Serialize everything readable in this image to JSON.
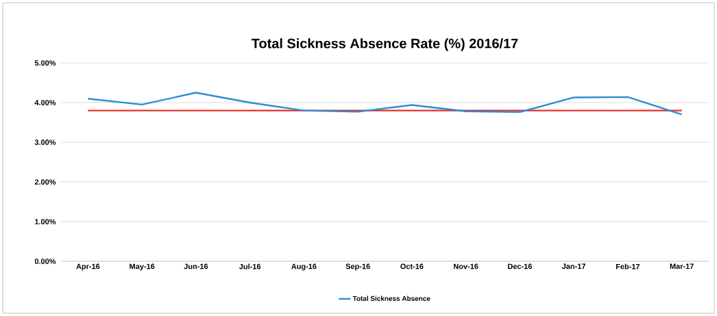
{
  "chart_data": {
    "type": "line",
    "title": "Total Sickness Absence Rate (%) 2016/17",
    "categories": [
      "Apr-16",
      "May-16",
      "Jun-16",
      "Jul-16",
      "Aug-16",
      "Sep-16",
      "Oct-16",
      "Nov-16",
      "Dec-16",
      "Jan-17",
      "Feb-17",
      "Mar-17"
    ],
    "series": [
      {
        "name": "Total Sickness Absence",
        "color": "#2e8bd0",
        "values": [
          4.1,
          3.95,
          4.25,
          4.0,
          3.8,
          3.77,
          3.94,
          3.78,
          3.76,
          4.13,
          4.14,
          3.7
        ]
      }
    ],
    "ref_lines": [
      {
        "axis": "y",
        "value": 3.8,
        "color": "#e0302a"
      }
    ],
    "ylim": [
      0,
      5
    ],
    "yticks": [
      {
        "value": 0,
        "label": "0.00%"
      },
      {
        "value": 1,
        "label": "1.00%"
      },
      {
        "value": 2,
        "label": "2.00%"
      },
      {
        "value": 3,
        "label": "3.00%"
      },
      {
        "value": 4,
        "label": "4.00%"
      },
      {
        "value": 5,
        "label": "5.00%"
      }
    ],
    "grid": "y",
    "legend": "bottom",
    "marker": "none",
    "line_style": "solid"
  }
}
